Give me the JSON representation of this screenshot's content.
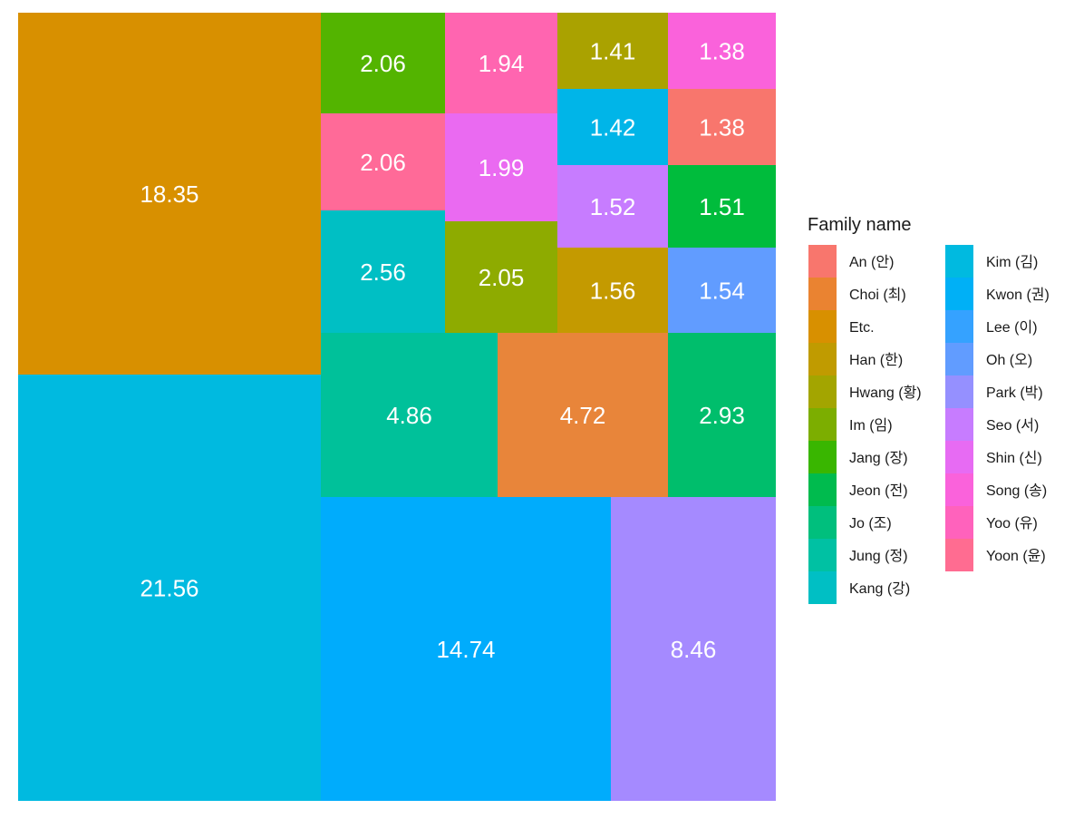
{
  "chart_data": {
    "type": "treemap",
    "title": "",
    "legend": {
      "title": "Family name",
      "placement": "right",
      "entries": [
        {
          "name": "An (안)",
          "color": "#F8766D"
        },
        {
          "name": "Choi (최)",
          "color": "#EA8331"
        },
        {
          "name": "Etc.",
          "color": "#D89000"
        },
        {
          "name": "Han (한)",
          "color": "#C09B00"
        },
        {
          "name": "Hwang (황)",
          "color": "#A3A500"
        },
        {
          "name": "Im (임)",
          "color": "#7CAE00"
        },
        {
          "name": "Jang (장)",
          "color": "#39B600"
        },
        {
          "name": "Jeon (전)",
          "color": "#00BB4E"
        },
        {
          "name": "Jo (조)",
          "color": "#00BF7D"
        },
        {
          "name": "Jung (정)",
          "color": "#00C1A3"
        },
        {
          "name": "Kang (강)",
          "color": "#00BFC4"
        },
        {
          "name": "Kim (김)",
          "color": "#00BAE0"
        },
        {
          "name": "Kwon (권)",
          "color": "#00B0F6"
        },
        {
          "name": "Lee (이)",
          "color": "#35A2FF"
        },
        {
          "name": "Oh (오)",
          "color": "#619CFF"
        },
        {
          "name": "Park (박)",
          "color": "#9590FF"
        },
        {
          "name": "Seo (서)",
          "color": "#C77CFF"
        },
        {
          "name": "Shin (신)",
          "color": "#E76BF3"
        },
        {
          "name": "Song (송)",
          "color": "#FA62DB"
        },
        {
          "name": "Yoo (유)",
          "color": "#FF62BC"
        },
        {
          "name": "Yoon (윤)",
          "color": "#FF6C91"
        }
      ]
    },
    "tiles": [
      {
        "name": "Kim (김)",
        "label": "21.56",
        "value": 21.56,
        "color": "#00BAE0"
      },
      {
        "name": "Etc.",
        "label": "18.35",
        "value": 18.35,
        "color": "#D89000"
      },
      {
        "name": "Lee (이)",
        "label": "14.74",
        "value": 14.74,
        "color": "#00ACFC"
      },
      {
        "name": "Park (박)",
        "label": "8.46",
        "value": 8.46,
        "color": "#A58AFF"
      },
      {
        "name": "Jung (정)",
        "label": "4.86",
        "value": 4.86,
        "color": "#00C19A"
      },
      {
        "name": "Choi (최)",
        "label": "4.72",
        "value": 4.72,
        "color": "#E8853A"
      },
      {
        "name": "Jo (조)",
        "label": "2.93",
        "value": 2.93,
        "color": "#00BE6C"
      },
      {
        "name": "Kang (강)",
        "label": "2.56",
        "value": 2.56,
        "color": "#00BFC4"
      },
      {
        "name": "Jang (장)",
        "label": "2.06",
        "value": 2.06,
        "color": "#53B400"
      },
      {
        "name": "Yoon (윤)",
        "label": "2.06",
        "value": 2.06,
        "color": "#FF6A98"
      },
      {
        "name": "Im (임)",
        "label": "2.05",
        "value": 2.05,
        "color": "#8EAB00"
      },
      {
        "name": "Shin (신)",
        "label": "1.99",
        "value": 1.99,
        "color": "#EA6AF1"
      },
      {
        "name": "Yoo (유)",
        "label": "1.94",
        "value": 1.94,
        "color": "#FF65B0"
      },
      {
        "name": "Han (한)",
        "label": "1.56",
        "value": 1.56,
        "color": "#C49A00"
      },
      {
        "name": "Oh (오)",
        "label": "1.54",
        "value": 1.54,
        "color": "#619CFF"
      },
      {
        "name": "Seo (서)",
        "label": "1.52",
        "value": 1.52,
        "color": "#C77CFF"
      },
      {
        "name": "Jeon (전)",
        "label": "1.51",
        "value": 1.51,
        "color": "#00BC3C"
      },
      {
        "name": "Kwon (권)",
        "label": "1.42",
        "value": 1.42,
        "color": "#00B5E8"
      },
      {
        "name": "Hwang (황)",
        "label": "1.41",
        "value": 1.41,
        "color": "#AAA200"
      },
      {
        "name": "Song (송)",
        "label": "1.38",
        "value": 1.38,
        "color": "#FA62DB"
      },
      {
        "name": "An (안)",
        "label": "1.38",
        "value": 1.38,
        "color": "#F8766D"
      }
    ]
  }
}
